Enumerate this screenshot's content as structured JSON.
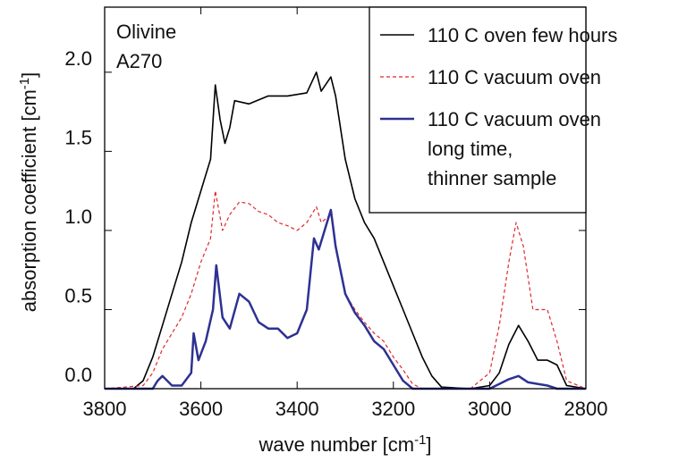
{
  "chart_data": {
    "type": "line",
    "annotations": [
      "Olivine",
      "A270"
    ],
    "xlabel": [
      "wave number [cm",
      "-1",
      "]"
    ],
    "ylabel": [
      "absorption coefficient [cm",
      "-1",
      "]"
    ],
    "xlim": [
      3800,
      2800
    ],
    "xticks": [
      3800,
      3600,
      3400,
      3200,
      3000,
      2800
    ],
    "ylim": [
      0,
      2.4
    ],
    "yticks": [
      {
        "value": 0,
        "label": "0.0"
      },
      0.5,
      {
        "value": 1,
        "label": "1.0"
      },
      1.5,
      {
        "value": 2,
        "label": "2.0"
      }
    ],
    "legend": "upper right",
    "series": [
      {
        "name": [
          "110 C oven few hours"
        ],
        "color": "#000000",
        "dash": "none",
        "width": 1.6,
        "x": [
          3800,
          3740,
          3720,
          3700,
          3680,
          3660,
          3640,
          3620,
          3600,
          3580,
          3570,
          3560,
          3550,
          3540,
          3530,
          3500,
          3460,
          3420,
          3380,
          3360,
          3350,
          3330,
          3320,
          3300,
          3280,
          3260,
          3240,
          3220,
          3200,
          3180,
          3160,
          3140,
          3120,
          3100,
          3040,
          3000,
          2980,
          2960,
          2940,
          2920,
          2900,
          2880,
          2860,
          2840,
          2800
        ],
        "values": [
          0,
          0,
          0.05,
          0.2,
          0.4,
          0.6,
          0.8,
          1.05,
          1.25,
          1.45,
          1.92,
          1.7,
          1.55,
          1.65,
          1.82,
          1.8,
          1.85,
          1.85,
          1.87,
          2.0,
          1.88,
          1.97,
          1.85,
          1.45,
          1.2,
          1.05,
          0.95,
          0.8,
          0.65,
          0.5,
          0.35,
          0.2,
          0.08,
          0.01,
          0,
          0.02,
          0.1,
          0.28,
          0.4,
          0.3,
          0.18,
          0.18,
          0.15,
          0.02,
          0
        ]
      },
      {
        "name": [
          "110 C vacuum oven"
        ],
        "color": "#e0282c",
        "dash": "4,3",
        "width": 1.2,
        "x": [
          3800,
          3720,
          3700,
          3680,
          3660,
          3640,
          3620,
          3600,
          3580,
          3570,
          3555,
          3540,
          3520,
          3500,
          3480,
          3460,
          3440,
          3420,
          3400,
          3380,
          3360,
          3350,
          3330,
          3320,
          3300,
          3280,
          3260,
          3240,
          3220,
          3200,
          3180,
          3160,
          3140,
          3040,
          3000,
          2980,
          2960,
          2945,
          2930,
          2910,
          2880,
          2860,
          2840,
          2800
        ],
        "values": [
          0,
          0.02,
          0.1,
          0.25,
          0.35,
          0.45,
          0.6,
          0.8,
          0.95,
          1.25,
          1.0,
          1.1,
          1.18,
          1.17,
          1.12,
          1.1,
          1.05,
          1.03,
          1.0,
          1.05,
          1.15,
          1.05,
          1.1,
          0.9,
          0.6,
          0.5,
          0.42,
          0.35,
          0.3,
          0.2,
          0.12,
          0.03,
          0,
          0,
          0.1,
          0.4,
          0.8,
          1.05,
          0.9,
          0.5,
          0.5,
          0.3,
          0.05,
          0
        ]
      },
      {
        "name": [
          "110 C vacuum oven",
          "long time,",
          "thinner sample"
        ],
        "color": "#2e3192",
        "dash": "none",
        "width": 2.5,
        "x": [
          3800,
          3700,
          3690,
          3680,
          3660,
          3640,
          3620,
          3615,
          3605,
          3590,
          3575,
          3568,
          3555,
          3540,
          3520,
          3500,
          3480,
          3460,
          3440,
          3420,
          3400,
          3380,
          3365,
          3355,
          3330,
          3320,
          3300,
          3280,
          3260,
          3240,
          3220,
          3200,
          3180,
          3160,
          3000,
          2980,
          2960,
          2940,
          2920,
          2880,
          2860,
          2800
        ],
        "values": [
          0,
          0,
          0.05,
          0.08,
          0.02,
          0.02,
          0.1,
          0.35,
          0.18,
          0.3,
          0.5,
          0.78,
          0.45,
          0.38,
          0.6,
          0.55,
          0.42,
          0.38,
          0.38,
          0.32,
          0.35,
          0.5,
          0.95,
          0.88,
          1.13,
          0.9,
          0.6,
          0.48,
          0.4,
          0.3,
          0.25,
          0.15,
          0.05,
          0,
          0,
          0.03,
          0.06,
          0.08,
          0.04,
          0.02,
          0,
          0
        ]
      }
    ]
  }
}
